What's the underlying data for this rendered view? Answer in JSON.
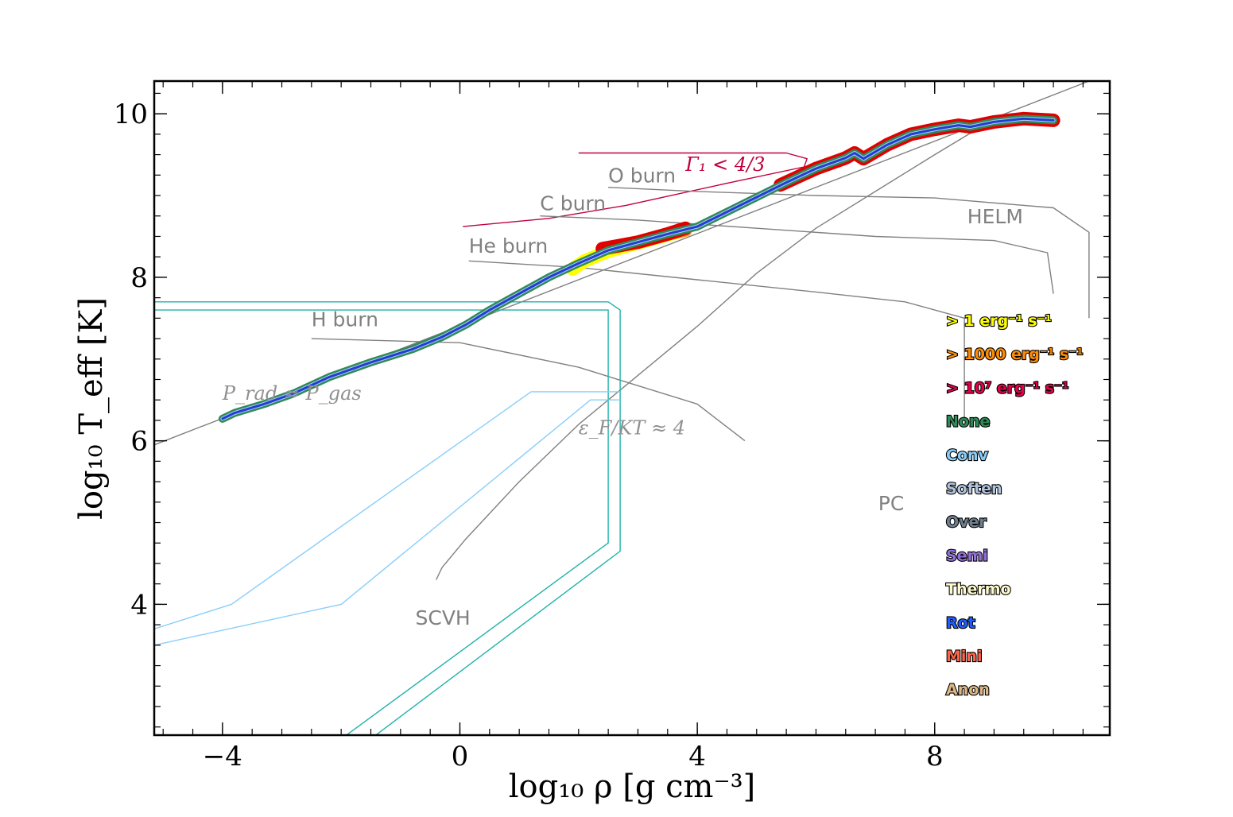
{
  "chart_data": {
    "type": "line",
    "xlabel": "log₁₀ ρ [g cm⁻³]",
    "ylabel": "log₁₀ T_eff [K]",
    "xlim": [
      -5.15,
      10.95
    ],
    "ylim": [
      2.4,
      10.4
    ],
    "x_ticks": [
      -4,
      0,
      4,
      8
    ],
    "x_tick_labels": [
      "−4",
      "0",
      "4",
      "8"
    ],
    "y_ticks": [
      4,
      6,
      8,
      10
    ],
    "y_tick_labels": [
      "4",
      "6",
      "8",
      "10"
    ],
    "grid": false,
    "legend_position": "right",
    "legend": [
      {
        "label": "> 1 erg⁻¹ s⁻¹",
        "color": "#ffff00"
      },
      {
        "label": "> 1000 erg⁻¹ s⁻¹",
        "color": "#ff8c00"
      },
      {
        "label": "> 10⁷ erg⁻¹ s⁻¹",
        "color": "#e8004a"
      },
      {
        "label": "None",
        "color": "#2e8b57"
      },
      {
        "label": "Conv",
        "color": "#87cefa"
      },
      {
        "label": "Soften",
        "color": "#b0c4de"
      },
      {
        "label": "Over",
        "color": "#708090"
      },
      {
        "label": "Semi",
        "color": "#9370db"
      },
      {
        "label": "Thermo",
        "color": "#fffacd"
      },
      {
        "label": "Rot",
        "color": "#1f5fff"
      },
      {
        "label": "Mini",
        "color": "#ff6347"
      },
      {
        "label": "Anon",
        "color": "#deb887"
      }
    ],
    "region_labels": [
      {
        "text": "He burn",
        "x": 0.15,
        "y": 8.3
      },
      {
        "text": "C burn",
        "x": 1.35,
        "y": 8.82
      },
      {
        "text": "O burn",
        "x": 2.5,
        "y": 9.16
      },
      {
        "text": "H burn",
        "x": -2.5,
        "y": 7.4
      },
      {
        "text": "HELM",
        "x": 8.55,
        "y": 8.66
      },
      {
        "text": "PC",
        "x": 7.05,
        "y": 5.15
      },
      {
        "text": "SCVH",
        "x": -0.75,
        "y": 3.75
      }
    ],
    "math_labels": [
      {
        "text": "Γ₁ < 4/3",
        "x": 3.8,
        "y": 9.3,
        "color": "#c0003c"
      },
      {
        "text": "P_rad ≈ P_gas",
        "x": -4.0,
        "y": 6.5,
        "color": "#909090"
      },
      {
        "text": "ε_F/KT ≈ 4",
        "x": 2.0,
        "y": 6.08,
        "color": "#909090"
      }
    ],
    "series": [
      {
        "role": "stellar-profile",
        "color": "#2e8b57",
        "x": [
          -4.0,
          -3.8,
          -3.3,
          -2.8,
          -2.2,
          -1.5,
          -0.8,
          -0.3,
          0.1,
          0.5,
          1.0,
          1.5,
          2.0,
          2.5,
          3.0,
          3.5,
          4.0,
          4.5,
          5.0,
          5.5,
          6.0,
          6.5,
          6.65,
          6.8,
          7.2,
          7.6,
          8.0,
          8.4,
          8.6,
          9.0,
          9.5,
          10.0
        ],
        "y": [
          6.27,
          6.34,
          6.45,
          6.58,
          6.78,
          6.96,
          7.12,
          7.27,
          7.42,
          7.6,
          7.8,
          8.0,
          8.17,
          8.33,
          8.43,
          8.53,
          8.62,
          8.8,
          8.98,
          9.16,
          9.33,
          9.46,
          9.52,
          9.45,
          9.62,
          9.75,
          9.81,
          9.86,
          9.84,
          9.9,
          9.94,
          9.92
        ]
      }
    ],
    "highlight_segments": [
      {
        "color": "#ffff00",
        "x": [
          1.9,
          2.1,
          2.5,
          3.0,
          3.5,
          3.8
        ],
        "y": [
          8.1,
          8.2,
          8.32,
          8.42,
          8.52,
          8.58
        ]
      },
      {
        "color": "#ff8c00",
        "x": [
          2.5,
          3.0,
          3.5,
          3.8
        ],
        "y": [
          8.36,
          8.43,
          8.53,
          8.58
        ]
      },
      {
        "color": "#e00000",
        "x": [
          2.4,
          3.0,
          3.5,
          3.8
        ],
        "y": [
          8.35,
          8.43,
          8.53,
          8.6
        ]
      },
      {
        "color": "#e00000",
        "x": [
          5.4,
          6.0,
          6.5,
          6.65,
          6.8,
          7.2,
          7.6,
          8.0,
          8.4,
          8.6,
          9.0,
          9.5,
          10.0
        ],
        "y": [
          9.13,
          9.33,
          9.46,
          9.52,
          9.45,
          9.62,
          9.75,
          9.81,
          9.86,
          9.84,
          9.9,
          9.94,
          9.92
        ]
      }
    ],
    "boundary_lines": [
      {
        "name": "gamma1-boundary",
        "color": "#c0003c",
        "x": [
          0.05,
          1.5,
          2.8,
          4.5,
          5.8,
          5.85,
          5.5,
          4.0,
          2.0
        ],
        "y": [
          8.62,
          8.72,
          8.88,
          9.15,
          9.35,
          9.45,
          9.52,
          9.52,
          9.52
        ]
      },
      {
        "name": "prad-pgas-line",
        "color": "#808080",
        "x": [
          -5.15,
          10.6
        ],
        "y": [
          5.95,
          10.4
        ]
      },
      {
        "name": "fermi-line",
        "color": "#808080",
        "x": [
          -0.4,
          -0.3,
          0.1,
          1.0,
          2.0,
          3.0,
          4.0,
          5.0,
          6.0,
          7.0,
          8.0,
          8.8
        ],
        "y": [
          4.3,
          4.45,
          4.8,
          5.5,
          6.2,
          6.8,
          7.4,
          8.05,
          8.6,
          9.05,
          9.5,
          9.85
        ]
      },
      {
        "name": "h-burn-line",
        "color": "#808080",
        "x": [
          -2.5,
          0.0,
          2.0,
          4.0,
          4.8
        ],
        "y": [
          7.25,
          7.2,
          6.9,
          6.45,
          6.0
        ]
      },
      {
        "name": "he-burn-line",
        "color": "#808080",
        "x": [
          0.15,
          2.0,
          4.0,
          6.0,
          7.5,
          8.5
        ],
        "y": [
          8.2,
          8.12,
          7.97,
          7.82,
          7.7,
          7.5
        ]
      },
      {
        "name": "c-burn-line",
        "color": "#808080",
        "x": [
          1.35,
          3.0,
          5.0,
          7.0,
          9.0,
          9.9,
          10.0
        ],
        "y": [
          8.75,
          8.7,
          8.6,
          8.5,
          8.45,
          8.3,
          7.8
        ]
      },
      {
        "name": "o-burn-line",
        "color": "#808080",
        "x": [
          2.5,
          4.0,
          6.0,
          8.0,
          10.0,
          10.6,
          10.6
        ],
        "y": [
          9.1,
          9.05,
          9.0,
          8.97,
          8.85,
          8.55,
          7.5
        ]
      },
      {
        "name": "helm-edge-line",
        "color": "#808080",
        "x": [
          8.5,
          8.5
        ],
        "y": [
          7.5,
          6.25
        ]
      },
      {
        "name": "scvh-outer",
        "color": "#20b2aa",
        "x": [
          -5.15,
          2.5,
          2.7,
          2.7,
          -1.6
        ],
        "y": [
          7.7,
          7.7,
          7.6,
          4.65,
          2.3
        ]
      },
      {
        "name": "scvh-inner",
        "color": "#20b2aa",
        "x": [
          -5.15,
          2.5,
          2.5,
          -2.1
        ],
        "y": [
          7.6,
          7.6,
          4.75,
          2.3
        ]
      },
      {
        "name": "conv-outer",
        "color": "#87cefa",
        "x": [
          -5.15,
          -3.85,
          1.2,
          2.7
        ],
        "y": [
          3.7,
          4.0,
          6.6,
          6.6
        ]
      },
      {
        "name": "conv-inner",
        "color": "#87cefa",
        "x": [
          -5.15,
          -2.0,
          2.2,
          2.7
        ],
        "y": [
          3.5,
          4.0,
          6.5,
          6.5
        ]
      }
    ]
  }
}
